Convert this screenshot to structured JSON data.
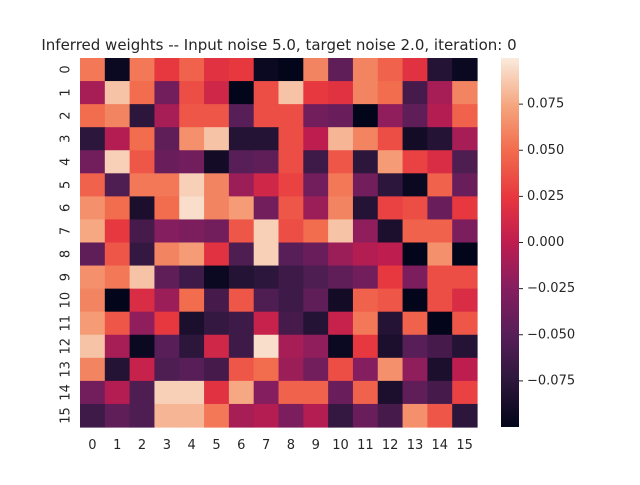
{
  "chart_data": {
    "type": "heatmap",
    "title": "Inferred weights -- Input noise 5.0, target noise 2.0, iteration: 0",
    "xlabel": "",
    "ylabel": "",
    "x_categories": [
      "0",
      "1",
      "2",
      "3",
      "4",
      "5",
      "6",
      "7",
      "8",
      "9",
      "10",
      "11",
      "12",
      "13",
      "14",
      "15"
    ],
    "y_categories": [
      "0",
      "1",
      "2",
      "3",
      "4",
      "5",
      "6",
      "7",
      "8",
      "9",
      "10",
      "11",
      "12",
      "13",
      "14",
      "15"
    ],
    "value_range": [
      -0.1,
      0.1
    ],
    "colormap": "rocket",
    "colorbar_ticks": [
      "0.075",
      "0.050",
      "0.025",
      "0.000",
      "−0.025",
      "−0.050",
      "−0.075"
    ],
    "colorbar_tick_values": [
      0.075,
      0.05,
      0.025,
      0.0,
      -0.025,
      -0.05,
      -0.075
    ],
    "values": [
      [
        0.055,
        -0.095,
        0.055,
        0.025,
        0.045,
        0.02,
        0.025,
        -0.095,
        -0.1,
        0.06,
        -0.045,
        0.06,
        0.045,
        0.02,
        -0.08,
        -0.095
      ],
      [
        -0.01,
        0.085,
        0.05,
        -0.035,
        0.035,
        0.01,
        -0.1,
        0.035,
        0.085,
        0.025,
        0.02,
        0.06,
        0.05,
        -0.06,
        -0.01,
        0.06
      ],
      [
        0.05,
        0.06,
        -0.075,
        -0.01,
        0.04,
        0.04,
        -0.05,
        0.035,
        0.035,
        -0.035,
        -0.04,
        -0.1,
        -0.02,
        -0.045,
        -0.005,
        0.045
      ],
      [
        -0.075,
        -0.005,
        0.05,
        -0.045,
        0.065,
        0.085,
        -0.08,
        -0.08,
        0.035,
        0.0,
        0.08,
        0.06,
        0.035,
        -0.09,
        -0.08,
        -0.01
      ],
      [
        -0.035,
        0.09,
        0.04,
        -0.04,
        -0.035,
        -0.09,
        -0.05,
        -0.045,
        0.035,
        -0.065,
        0.04,
        -0.075,
        0.07,
        0.03,
        0.015,
        -0.055
      ],
      [
        0.045,
        -0.055,
        0.055,
        0.055,
        0.09,
        0.06,
        -0.015,
        0.01,
        0.03,
        -0.035,
        0.055,
        -0.035,
        -0.075,
        -0.095,
        0.045,
        -0.04
      ],
      [
        0.065,
        0.05,
        -0.085,
        0.05,
        0.095,
        0.06,
        0.07,
        -0.035,
        0.04,
        -0.015,
        0.06,
        -0.08,
        0.03,
        0.035,
        -0.04,
        0.025
      ],
      [
        0.075,
        0.025,
        -0.06,
        -0.025,
        -0.03,
        -0.035,
        0.04,
        0.09,
        0.035,
        0.05,
        0.085,
        -0.02,
        -0.085,
        0.045,
        0.045,
        -0.03
      ],
      [
        -0.045,
        0.04,
        -0.07,
        0.06,
        0.07,
        0.02,
        -0.055,
        0.09,
        -0.05,
        -0.04,
        -0.015,
        -0.005,
        0.0,
        -0.1,
        0.065,
        -0.1
      ],
      [
        0.065,
        0.055,
        0.085,
        -0.045,
        -0.065,
        -0.095,
        -0.08,
        -0.075,
        -0.065,
        -0.055,
        -0.045,
        -0.035,
        0.025,
        -0.03,
        0.035,
        0.035
      ],
      [
        0.06,
        -0.1,
        0.015,
        -0.015,
        0.05,
        -0.06,
        0.04,
        -0.055,
        -0.065,
        -0.045,
        -0.09,
        0.045,
        0.04,
        -0.1,
        0.035,
        0.015
      ],
      [
        0.07,
        0.04,
        -0.02,
        0.025,
        -0.085,
        -0.07,
        -0.065,
        0.005,
        -0.06,
        -0.08,
        0.005,
        0.055,
        -0.08,
        0.045,
        -0.1,
        0.04
      ],
      [
        0.085,
        -0.01,
        -0.095,
        -0.05,
        -0.075,
        0.01,
        -0.065,
        0.095,
        -0.01,
        -0.02,
        -0.095,
        0.025,
        -0.085,
        -0.05,
        -0.06,
        -0.08
      ],
      [
        0.06,
        -0.08,
        0.005,
        -0.055,
        -0.05,
        -0.06,
        0.04,
        0.05,
        -0.015,
        -0.035,
        0.035,
        -0.025,
        0.065,
        -0.02,
        -0.085,
        0.0
      ],
      [
        -0.035,
        -0.005,
        -0.055,
        0.09,
        0.09,
        0.02,
        0.075,
        -0.025,
        0.045,
        0.045,
        -0.04,
        0.045,
        -0.085,
        -0.045,
        -0.06,
        0.03
      ],
      [
        -0.065,
        -0.045,
        -0.055,
        0.08,
        0.08,
        0.055,
        -0.01,
        -0.005,
        -0.03,
        -0.005,
        -0.07,
        -0.04,
        -0.06,
        0.065,
        0.04,
        -0.075
      ]
    ]
  }
}
